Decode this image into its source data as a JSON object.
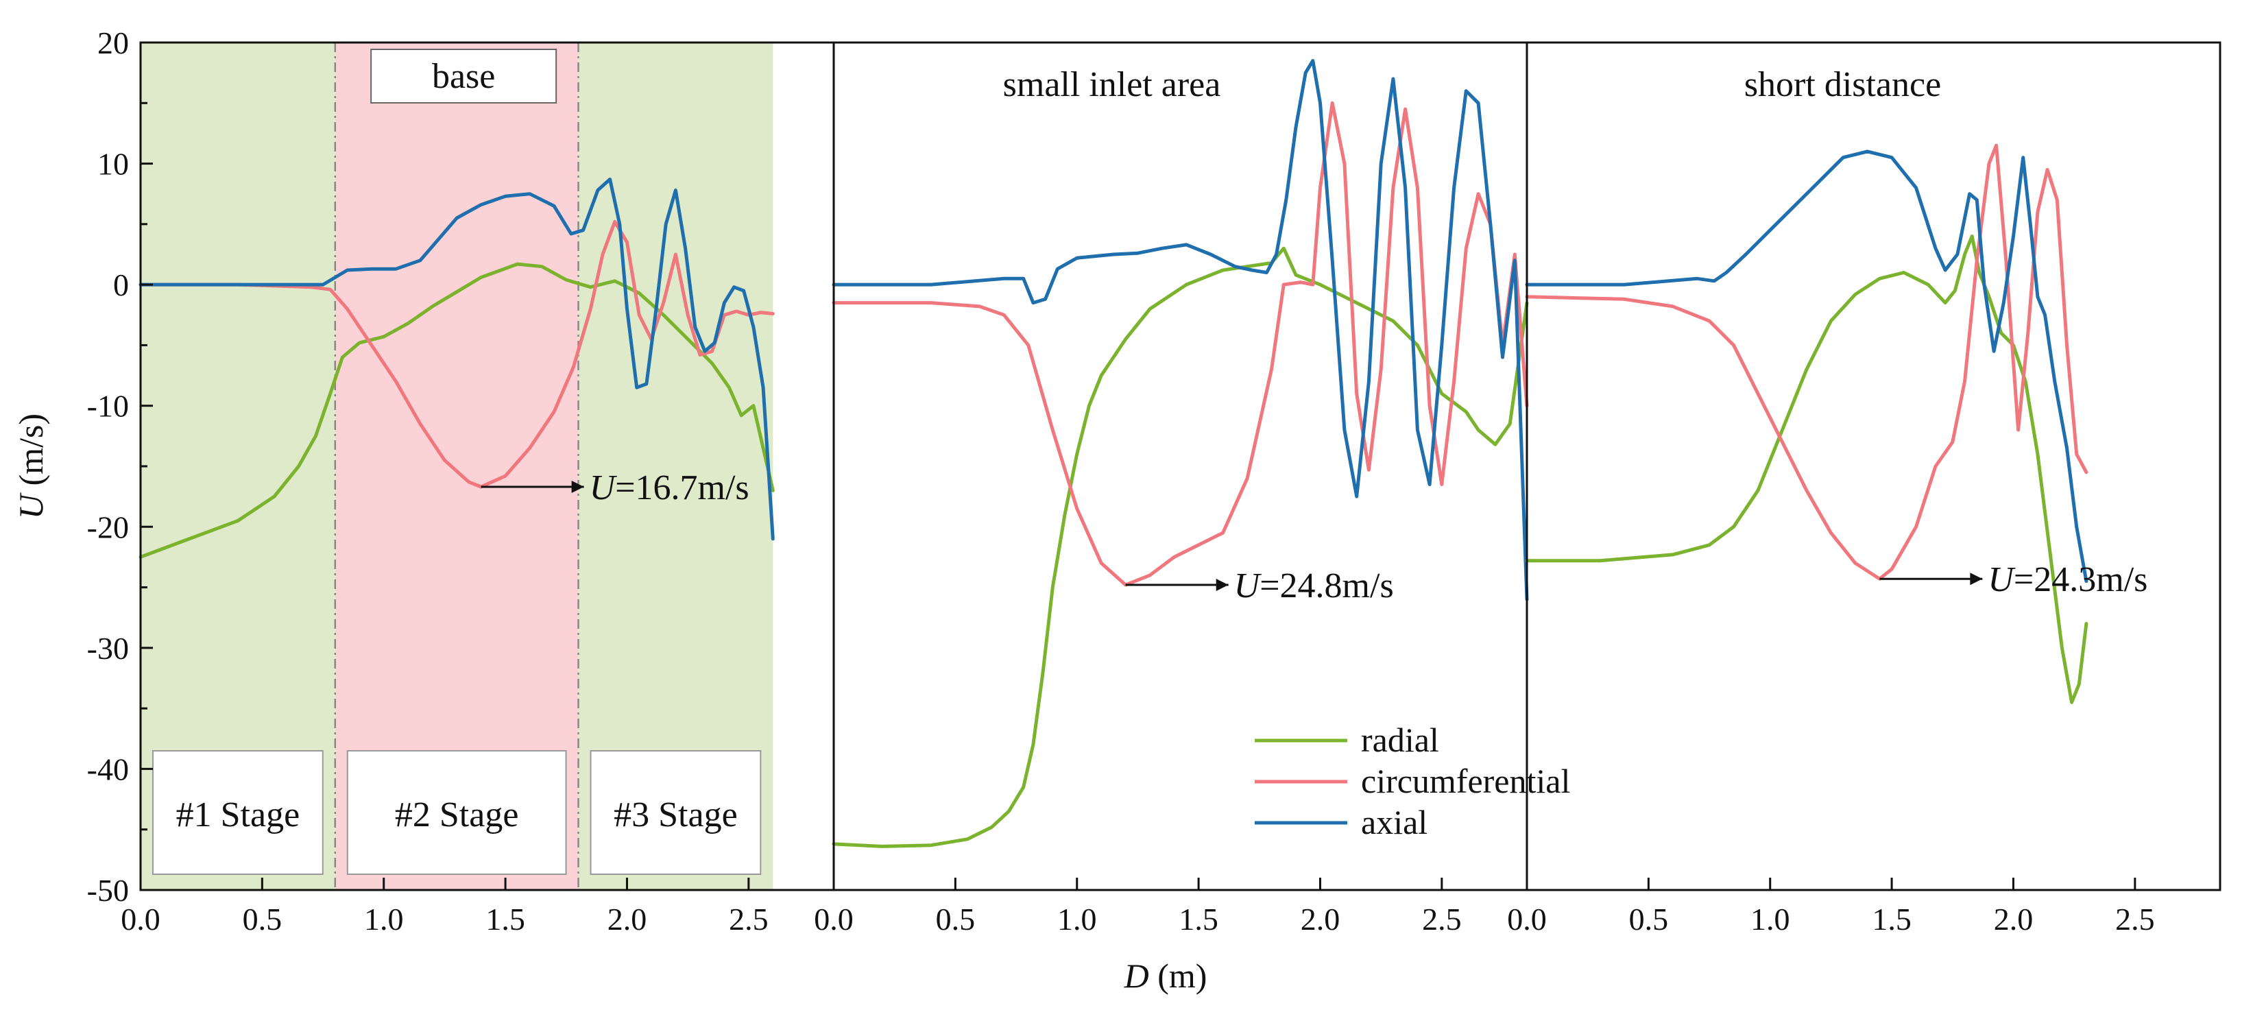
{
  "chart_data": {
    "type": "line",
    "xlabel": "D (m)",
    "ylabel": "U (m/s)",
    "ylim": [
      -50,
      20
    ],
    "yticks": [
      20,
      10,
      0,
      -10,
      -20,
      -30,
      -40,
      -50
    ],
    "xticks": [
      0.0,
      0.5,
      1.0,
      1.5,
      2.0,
      2.5
    ],
    "colors": {
      "radial": "#7cb32e",
      "circumferential": "#f0777e",
      "axial": "#1f6fae",
      "stage_green": "#dfeacb",
      "stage_pink": "#fbd3d6"
    },
    "legend": [
      "radial",
      "circumferential",
      "axial"
    ],
    "panels": [
      {
        "title": "base",
        "xlim": [
          0,
          2.85
        ],
        "stages": [
          {
            "label": "#1 Stage",
            "from": 0.0,
            "to": 0.8,
            "color": "green"
          },
          {
            "label": "#2 Stage",
            "from": 0.8,
            "to": 1.8,
            "color": "pink"
          },
          {
            "label": "#3 Stage",
            "from": 1.8,
            "to": 2.6,
            "color": "green"
          }
        ],
        "annotation": {
          "text": "=16.7m/s",
          "prefix": "U",
          "x": 1.4,
          "y": -16.7
        },
        "series": [
          {
            "name": "radial",
            "x": [
              0,
              0.2,
              0.4,
              0.55,
              0.65,
              0.72,
              0.78,
              0.83,
              0.9,
              1.0,
              1.1,
              1.2,
              1.3,
              1.4,
              1.55,
              1.65,
              1.75,
              1.85,
              1.95,
              2.05,
              2.15,
              2.25,
              2.35,
              2.42,
              2.47,
              2.52,
              2.6
            ],
            "y": [
              -22.5,
              -21,
              -19.5,
              -17.5,
              -15,
              -12.5,
              -9,
              -6,
              -4.8,
              -4.3,
              -3.2,
              -1.8,
              -0.6,
              0.6,
              1.7,
              1.5,
              0.4,
              -0.2,
              0.3,
              -0.7,
              -2.5,
              -4.5,
              -6.5,
              -8.5,
              -10.8,
              -10,
              -17
            ]
          },
          {
            "name": "circumferential",
            "x": [
              0,
              0.4,
              0.7,
              0.78,
              0.85,
              0.95,
              1.05,
              1.15,
              1.25,
              1.35,
              1.4,
              1.5,
              1.6,
              1.7,
              1.78,
              1.85,
              1.9,
              1.95,
              2.0,
              2.05,
              2.1,
              2.15,
              2.2,
              2.25,
              2.3,
              2.35,
              2.4,
              2.45,
              2.5,
              2.55,
              2.6
            ],
            "y": [
              0,
              0,
              -0.2,
              -0.4,
              -2,
              -5,
              -8,
              -11.5,
              -14.5,
              -16.3,
              -16.7,
              -15.8,
              -13.5,
              -10.5,
              -6.8,
              -2,
              2.5,
              5.2,
              3.5,
              -2.5,
              -4.5,
              -1.5,
              2.5,
              -2.5,
              -5.8,
              -5.5,
              -2.5,
              -2.2,
              -2.5,
              -2.3,
              -2.4
            ]
          },
          {
            "name": "axial",
            "x": [
              0,
              0.4,
              0.75,
              0.85,
              0.95,
              1.05,
              1.15,
              1.3,
              1.4,
              1.5,
              1.6,
              1.7,
              1.77,
              1.82,
              1.88,
              1.93,
              1.97,
              2.0,
              2.04,
              2.08,
              2.12,
              2.16,
              2.2,
              2.24,
              2.28,
              2.32,
              2.36,
              2.4,
              2.44,
              2.48,
              2.52,
              2.56,
              2.6
            ],
            "y": [
              0,
              0,
              0,
              1.2,
              1.3,
              1.3,
              2,
              5.5,
              6.6,
              7.3,
              7.5,
              6.5,
              4.2,
              4.5,
              7.8,
              8.7,
              5,
              -2,
              -8.5,
              -8.2,
              -2,
              5,
              7.8,
              3,
              -3.5,
              -5.5,
              -4.8,
              -1.5,
              -0.2,
              -0.5,
              -3.5,
              -8.5,
              -21
            ]
          }
        ]
      },
      {
        "title": "small inlet area",
        "xlim": [
          0,
          2.85
        ],
        "stages": [],
        "annotation": {
          "text": "=24.8m/s",
          "prefix": "U",
          "x": 1.2,
          "y": -24.8
        },
        "series": [
          {
            "name": "radial",
            "x": [
              0,
              0.2,
              0.4,
              0.55,
              0.65,
              0.72,
              0.78,
              0.82,
              0.86,
              0.9,
              0.95,
              1.0,
              1.05,
              1.1,
              1.2,
              1.3,
              1.45,
              1.6,
              1.7,
              1.8,
              1.85,
              1.9,
              2.0,
              2.1,
              2.2,
              2.3,
              2.4,
              2.5,
              2.6,
              2.65,
              2.72,
              2.78,
              2.85
            ],
            "y": [
              -46.2,
              -46.4,
              -46.3,
              -45.8,
              -44.8,
              -43.5,
              -41.5,
              -38,
              -32,
              -25,
              -19,
              -14,
              -10,
              -7.5,
              -4.5,
              -2,
              0,
              1.2,
              1.5,
              1.8,
              3,
              0.8,
              0,
              -1,
              -2,
              -3,
              -5,
              -9,
              -10.5,
              -12,
              -13.2,
              -11.5,
              -1.5
            ]
          },
          {
            "name": "circumferential",
            "x": [
              0,
              0.4,
              0.6,
              0.7,
              0.8,
              0.9,
              1.0,
              1.1,
              1.2,
              1.3,
              1.4,
              1.5,
              1.6,
              1.7,
              1.8,
              1.85,
              1.92,
              1.97,
              2.0,
              2.05,
              2.1,
              2.15,
              2.2,
              2.25,
              2.3,
              2.35,
              2.4,
              2.45,
              2.5,
              2.55,
              2.6,
              2.65,
              2.7,
              2.75,
              2.8,
              2.85
            ],
            "y": [
              -1.5,
              -1.5,
              -1.8,
              -2.5,
              -5,
              -12,
              -18.5,
              -23,
              -24.8,
              -24,
              -22.5,
              -21.5,
              -20.5,
              -16,
              -7,
              0,
              0.2,
              0,
              8,
              15,
              10,
              -9,
              -15.3,
              -7,
              8,
              14.5,
              8,
              -10,
              -16.5,
              -8,
              3,
              7.5,
              5,
              -5,
              2.5,
              -10
            ]
          },
          {
            "name": "axial",
            "x": [
              0,
              0.4,
              0.7,
              0.78,
              0.82,
              0.87,
              0.92,
              1.0,
              1.15,
              1.25,
              1.35,
              1.45,
              1.55,
              1.65,
              1.72,
              1.78,
              1.82,
              1.86,
              1.9,
              1.94,
              1.97,
              2.0,
              2.05,
              2.1,
              2.15,
              2.2,
              2.25,
              2.3,
              2.35,
              2.4,
              2.45,
              2.5,
              2.55,
              2.6,
              2.65,
              2.7,
              2.75,
              2.8,
              2.85
            ],
            "y": [
              0,
              0,
              0.5,
              0.5,
              -1.5,
              -1.2,
              1.3,
              2.2,
              2.5,
              2.6,
              3,
              3.3,
              2.5,
              1.5,
              1.2,
              1,
              2.5,
              7,
              13,
              17.5,
              18.5,
              15,
              2,
              -12,
              -17.5,
              -8,
              10,
              17,
              8,
              -12,
              -16.5,
              -5,
              8,
              16,
              15,
              5,
              -6,
              2,
              -26
            ]
          }
        ]
      },
      {
        "title": "short distance",
        "xlim": [
          0,
          2.85
        ],
        "stages": [],
        "annotation": {
          "text": "=24.3m/s",
          "prefix": "U",
          "x": 1.45,
          "y": -24.3
        },
        "series": [
          {
            "name": "radial",
            "x": [
              0,
              0.3,
              0.6,
              0.75,
              0.85,
              0.95,
              1.05,
              1.15,
              1.25,
              1.35,
              1.45,
              1.55,
              1.65,
              1.72,
              1.76,
              1.8,
              1.83,
              1.86,
              1.9,
              1.95,
              2.0,
              2.05,
              2.1,
              2.15,
              2.2,
              2.24,
              2.27,
              2.3
            ],
            "y": [
              -22.8,
              -22.8,
              -22.3,
              -21.5,
              -20,
              -17,
              -12,
              -7,
              -3,
              -0.8,
              0.5,
              1,
              0,
              -1.5,
              -0.5,
              2.5,
              4,
              1,
              -1,
              -4,
              -5,
              -8,
              -14,
              -22,
              -30,
              -34.5,
              -33,
              -28
            ]
          },
          {
            "name": "circumferential",
            "x": [
              0,
              0.4,
              0.6,
              0.75,
              0.85,
              0.95,
              1.05,
              1.15,
              1.25,
              1.35,
              1.45,
              1.5,
              1.6,
              1.68,
              1.75,
              1.8,
              1.85,
              1.9,
              1.93,
              1.97,
              2.02,
              2.06,
              2.1,
              2.14,
              2.18,
              2.22,
              2.26,
              2.3
            ],
            "y": [
              -1,
              -1.2,
              -1.8,
              -3,
              -5,
              -9,
              -13,
              -17,
              -20.5,
              -23,
              -24.3,
              -23.5,
              -20,
              -15,
              -13,
              -8,
              2,
              10,
              11.5,
              2,
              -12,
              -4,
              6,
              9.5,
              7,
              -5,
              -14,
              -15.5
            ]
          },
          {
            "name": "axial",
            "x": [
              0,
              0.4,
              0.7,
              0.77,
              0.82,
              0.9,
              1.0,
              1.1,
              1.2,
              1.3,
              1.4,
              1.5,
              1.6,
              1.68,
              1.72,
              1.77,
              1.82,
              1.85,
              1.88,
              1.92,
              1.96,
              2.0,
              2.04,
              2.07,
              2.1,
              2.13,
              2.17,
              2.22,
              2.26,
              2.3
            ],
            "y": [
              0,
              0,
              0.5,
              0.3,
              1,
              2.5,
              4.5,
              6.5,
              8.5,
              10.5,
              11,
              10.5,
              8,
              3,
              1.2,
              2.5,
              7.5,
              7,
              0,
              -5.5,
              -1.5,
              4,
              10.5,
              5,
              -1,
              -2.5,
              -8,
              -13.5,
              -20,
              -24.5
            ]
          }
        ]
      }
    ]
  }
}
